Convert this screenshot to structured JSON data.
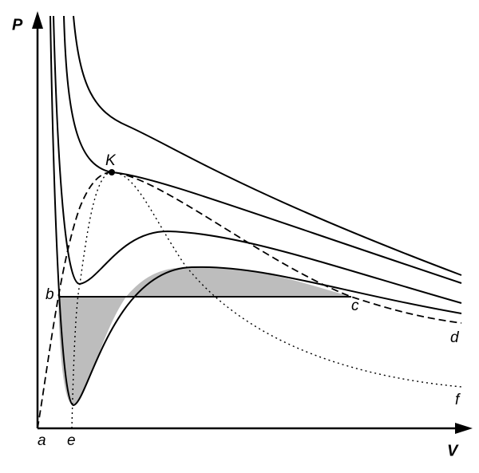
{
  "axis_labels": {
    "y": "P",
    "x": "V"
  },
  "point_labels": [
    "K",
    "a",
    "b",
    "c",
    "d",
    "e",
    "f"
  ]
}
